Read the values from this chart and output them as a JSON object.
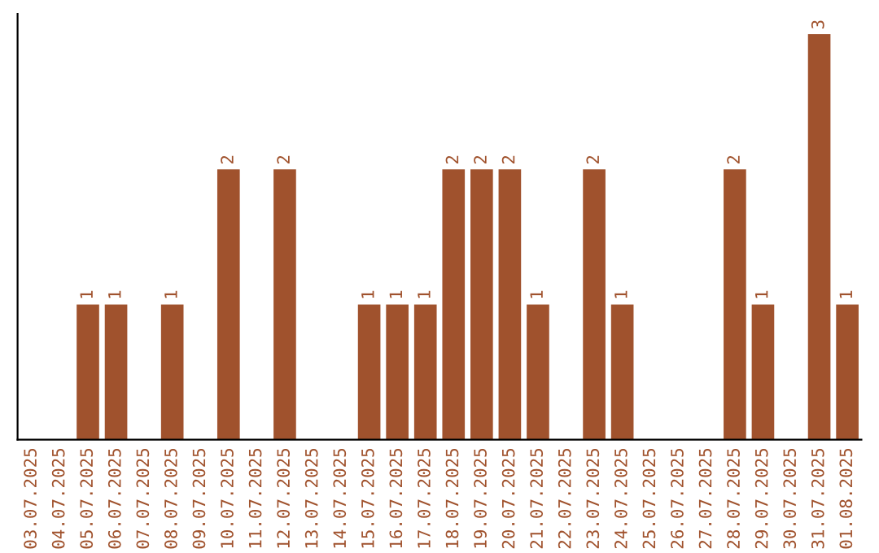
{
  "chart_data": {
    "type": "bar",
    "categories": [
      "03.07.2025",
      "04.07.2025",
      "05.07.2025",
      "06.07.2025",
      "07.07.2025",
      "08.07.2025",
      "09.07.2025",
      "10.07.2025",
      "11.07.2025",
      "12.07.2025",
      "13.07.2025",
      "14.07.2025",
      "15.07.2025",
      "16.07.2025",
      "17.07.2025",
      "18.07.2025",
      "19.07.2025",
      "20.07.2025",
      "21.07.2025",
      "22.07.2025",
      "23.07.2025",
      "24.07.2025",
      "25.07.2025",
      "26.07.2025",
      "27.07.2025",
      "28.07.2025",
      "29.07.2025",
      "30.07.2025",
      "31.07.2025",
      "01.08.2025"
    ],
    "values": [
      0,
      0,
      1,
      1,
      0,
      1,
      0,
      2,
      0,
      2,
      0,
      0,
      1,
      1,
      1,
      2,
      2,
      2,
      1,
      0,
      2,
      1,
      0,
      0,
      0,
      2,
      1,
      0,
      3,
      1
    ],
    "value_labels": [
      null,
      null,
      "1",
      "1",
      null,
      "1",
      null,
      "2",
      null,
      "2",
      null,
      null,
      "1",
      "1",
      "1",
      "2",
      "2",
      "2",
      "1",
      null,
      "2",
      "1",
      null,
      null,
      null,
      "2",
      "1",
      null,
      "3",
      "1"
    ],
    "color": "#a0522d",
    "tick_labels": "x",
    "grid": false,
    "legend": false
  }
}
